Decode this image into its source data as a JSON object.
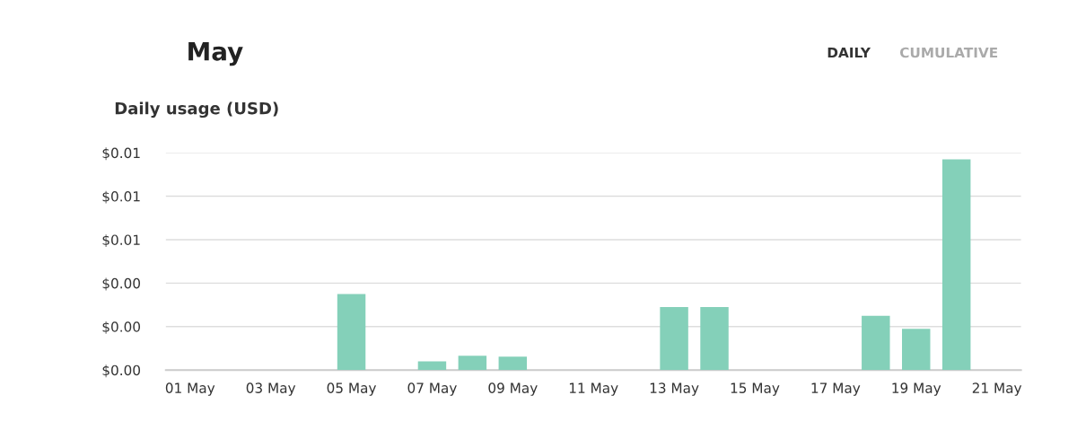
{
  "chart_data": {
    "type": "bar",
    "title": "Daily usage (USD)",
    "annotations": [
      "May",
      "DAILY",
      "CUMULATIVE"
    ],
    "categories": [
      "01 May",
      null,
      "03 May",
      null,
      "05 May",
      null,
      "07 May",
      null,
      "09 May",
      null,
      "11 May",
      null,
      "13 May",
      null,
      "15 May",
      null,
      "17 May",
      null,
      "19 May",
      null,
      "21 May"
    ],
    "values": [
      0,
      0,
      0,
      0,
      0.0035,
      0,
      0.0004,
      0.00066,
      0.00062,
      0,
      0,
      0,
      0.0029,
      0.0029,
      0,
      0,
      0,
      0.0025,
      0.0019,
      0.0097,
      0
    ],
    "color": "#84d0b9",
    "ylim": [
      0,
      0.01
    ],
    "yticks": [
      {
        "value": 0,
        "label": "$0.00"
      },
      {
        "value": 0.002,
        "label": "$0.00"
      },
      {
        "value": 0.004,
        "label": "$0.00"
      },
      {
        "value": 0.006,
        "label": "$0.01"
      },
      {
        "value": 0.008,
        "label": "$0.01"
      },
      {
        "value": 0.01,
        "label": "$0.01"
      }
    ],
    "grid": "y"
  }
}
